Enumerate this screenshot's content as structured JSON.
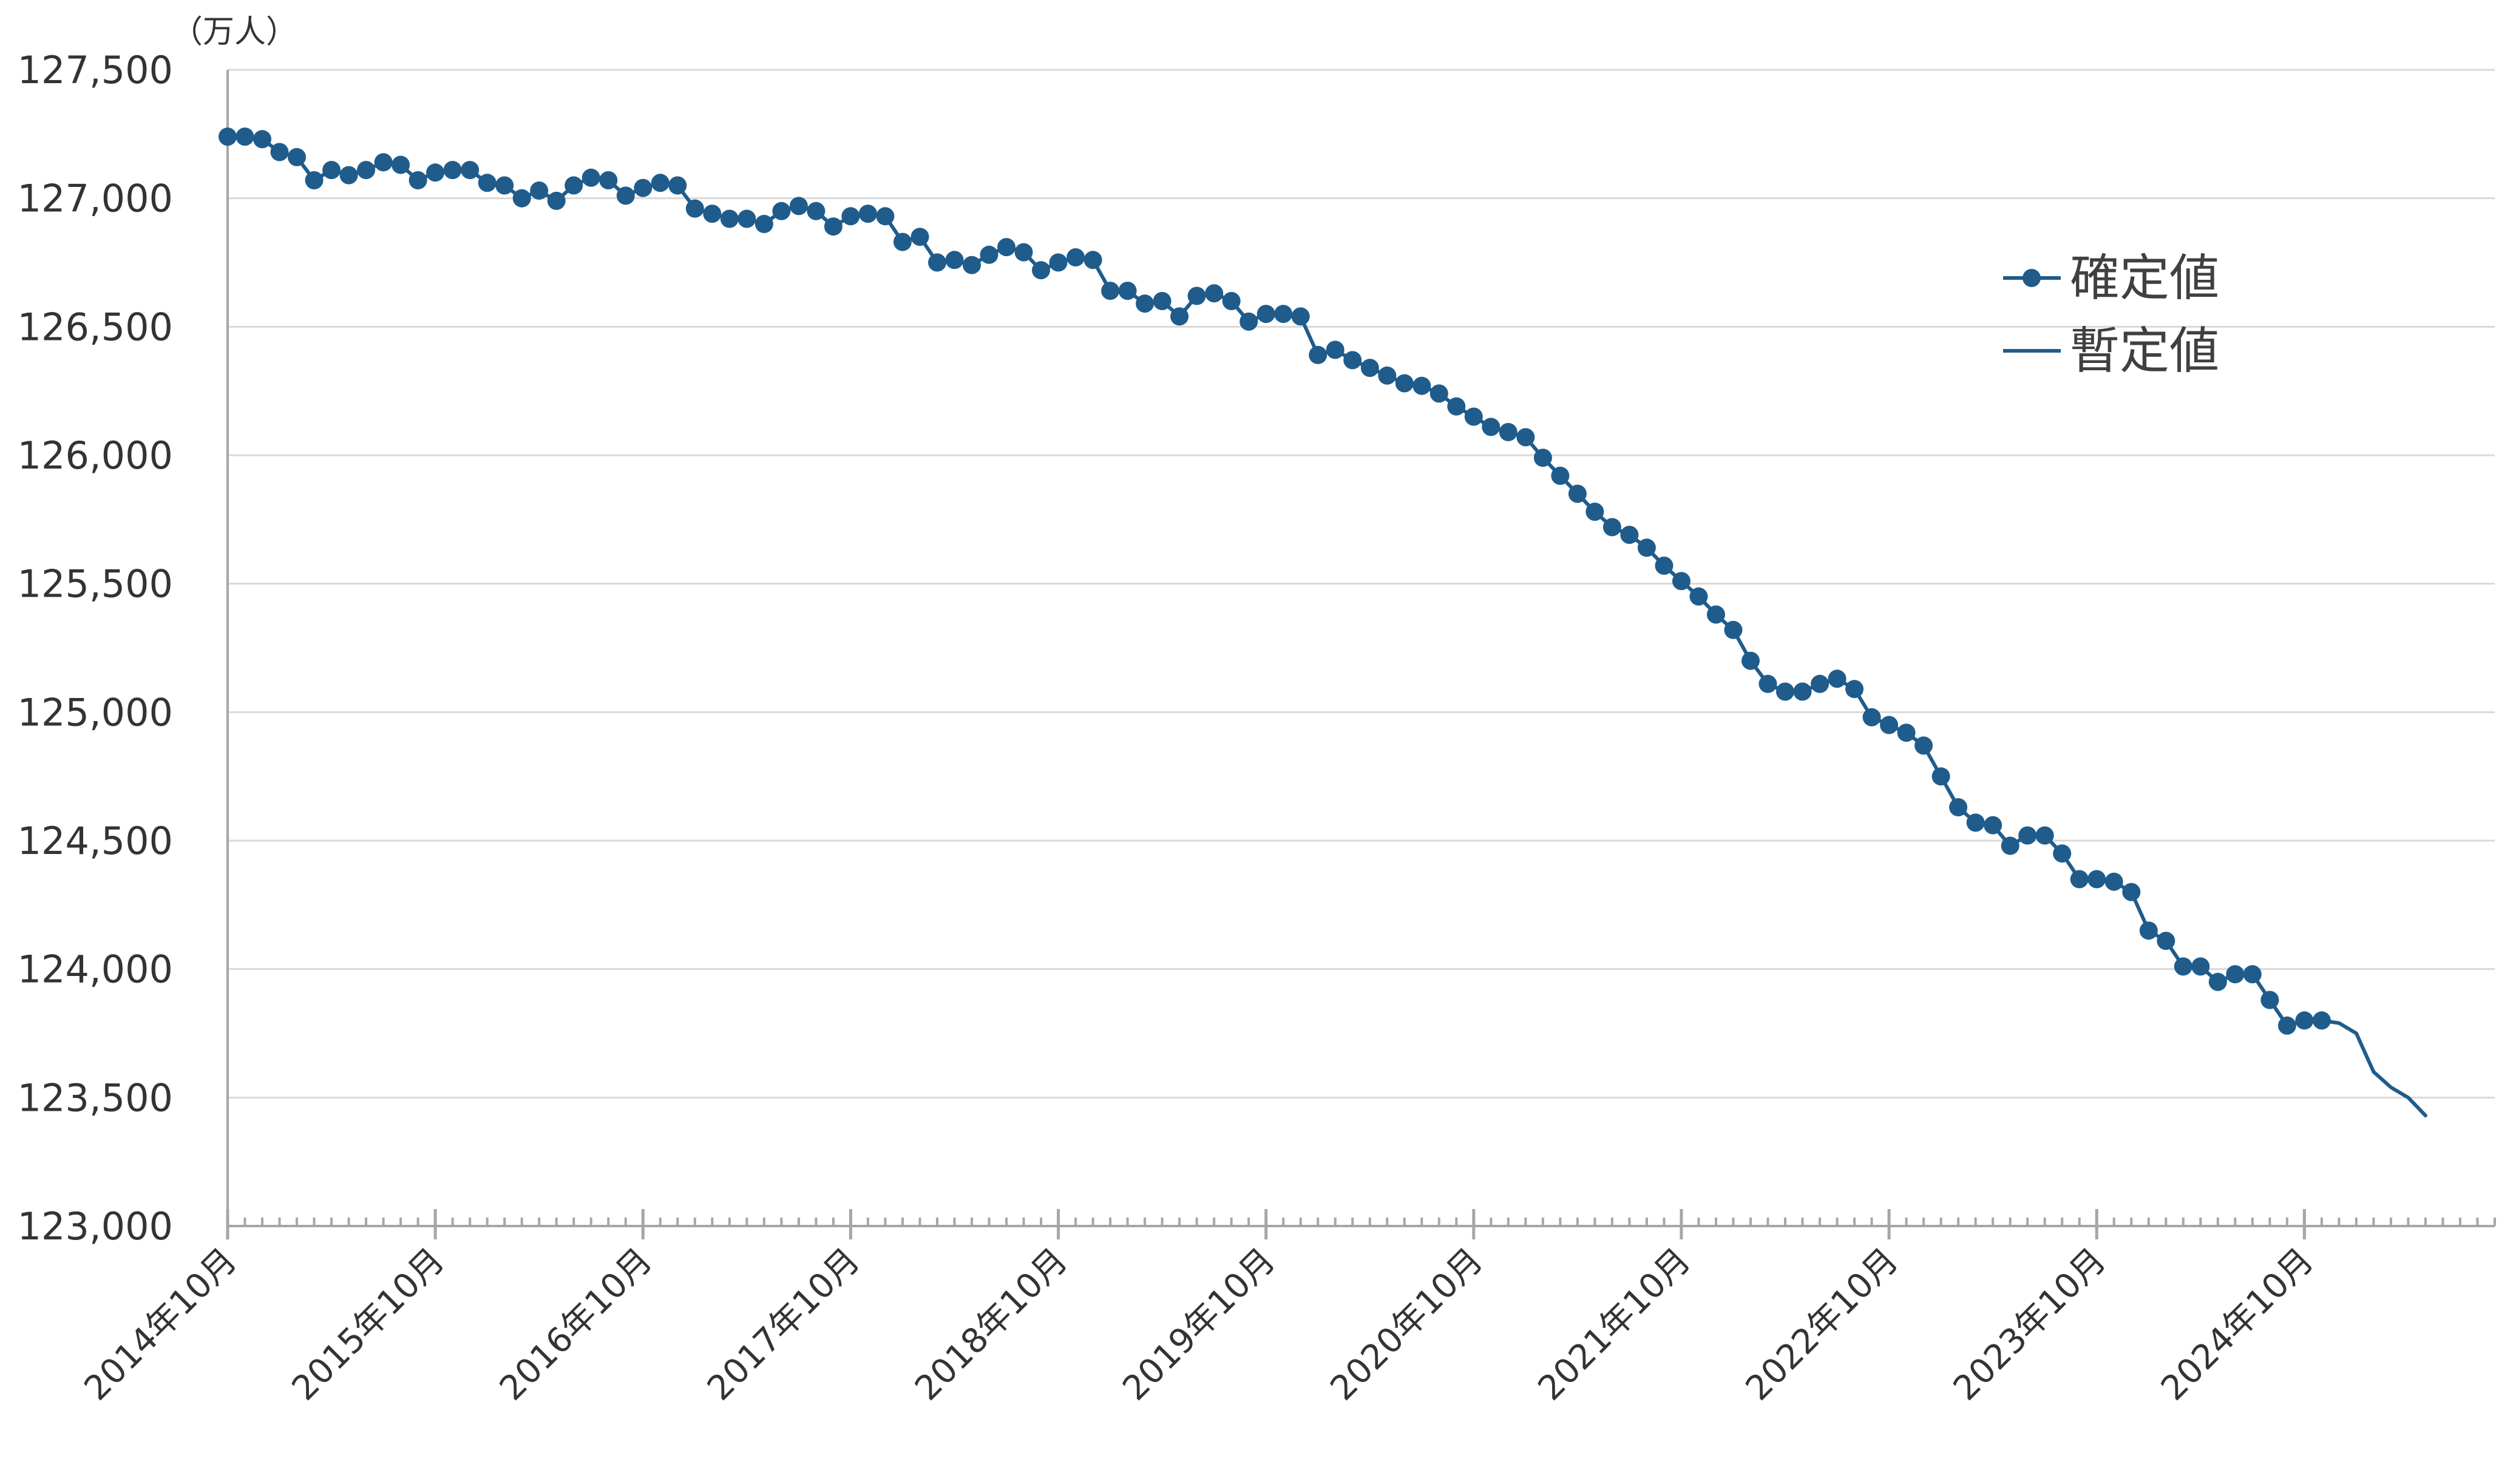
{
  "chart_data": {
    "type": "line",
    "y_unit": "（万人）",
    "ylim": [
      123000,
      127500
    ],
    "y_ticks": [
      {
        "value": 123000,
        "label": "123,000"
      },
      {
        "value": 123500,
        "label": "123,500"
      },
      {
        "value": 124000,
        "label": "124,000"
      },
      {
        "value": 124500,
        "label": "124,500"
      },
      {
        "value": 125000,
        "label": "125,000"
      },
      {
        "value": 125500,
        "label": "125,500"
      },
      {
        "value": 126000,
        "label": "126,000"
      },
      {
        "value": 126500,
        "label": "126,500"
      },
      {
        "value": 127000,
        "label": "127,000"
      },
      {
        "value": 127500,
        "label": "127,500"
      }
    ],
    "x_ticks": [
      {
        "value": "2014-10",
        "label": "2014年10月"
      },
      {
        "value": "2015-10",
        "label": "2015年10月"
      },
      {
        "value": "2016-10",
        "label": "2016年10月"
      },
      {
        "value": "2017-10",
        "label": "2017年10月"
      },
      {
        "value": "2018-10",
        "label": "2018年10月"
      },
      {
        "value": "2019-10",
        "label": "2019年10月"
      },
      {
        "value": "2020-10",
        "label": "2020年10月"
      },
      {
        "value": "2021-10",
        "label": "2021年10月"
      },
      {
        "value": "2022-10",
        "label": "2022年10月"
      },
      {
        "value": "2023-10",
        "label": "2023年10月"
      },
      {
        "value": "2024-10",
        "label": "2024年10月"
      }
    ],
    "xlim": [
      "2014-10",
      "2025-09"
    ],
    "grid": true,
    "legend_position": "upper-right",
    "series": [
      {
        "name": "確定値",
        "style": "line-with-markers",
        "color": "#1f5c8b",
        "x": [
          "2014-10",
          "2014-11",
          "2014-12",
          "2015-01",
          "2015-02",
          "2015-03",
          "2015-04",
          "2015-05",
          "2015-06",
          "2015-07",
          "2015-08",
          "2015-09",
          "2015-10",
          "2015-11",
          "2015-12",
          "2016-01",
          "2016-02",
          "2016-03",
          "2016-04",
          "2016-05",
          "2016-06",
          "2016-07",
          "2016-08",
          "2016-09",
          "2016-10",
          "2016-11",
          "2016-12",
          "2017-01",
          "2017-02",
          "2017-03",
          "2017-04",
          "2017-05",
          "2017-06",
          "2017-07",
          "2017-08",
          "2017-09",
          "2017-10",
          "2017-11",
          "2017-12",
          "2018-01",
          "2018-02",
          "2018-03",
          "2018-04",
          "2018-05",
          "2018-06",
          "2018-07",
          "2018-08",
          "2018-09",
          "2018-10",
          "2018-11",
          "2018-12",
          "2019-01",
          "2019-02",
          "2019-03",
          "2019-04",
          "2019-05",
          "2019-06",
          "2019-07",
          "2019-08",
          "2019-09",
          "2019-10",
          "2019-11",
          "2019-12",
          "2020-01",
          "2020-02",
          "2020-03",
          "2020-04",
          "2020-05",
          "2020-06",
          "2020-07",
          "2020-08",
          "2020-09",
          "2020-10",
          "2020-11",
          "2020-12",
          "2021-01",
          "2021-02",
          "2021-03",
          "2021-04",
          "2021-05",
          "2021-06",
          "2021-07",
          "2021-08",
          "2021-09",
          "2021-10",
          "2021-11",
          "2021-12",
          "2022-01",
          "2022-02",
          "2022-03",
          "2022-04",
          "2022-05",
          "2022-06",
          "2022-07",
          "2022-08",
          "2022-09",
          "2022-10",
          "2022-11",
          "2022-12",
          "2023-01",
          "2023-02",
          "2023-03",
          "2023-04",
          "2023-05",
          "2023-06",
          "2023-07",
          "2023-08",
          "2023-09",
          "2023-10",
          "2023-11",
          "2023-12",
          "2024-01",
          "2024-02",
          "2024-03",
          "2024-04",
          "2024-05",
          "2024-06",
          "2024-07",
          "2024-08",
          "2024-09",
          "2024-10",
          "2024-11"
        ],
        "y": [
          127240,
          127240,
          127230,
          127180,
          127160,
          127070,
          127110,
          127090,
          127110,
          127140,
          127130,
          127070,
          127100,
          127110,
          127110,
          127060,
          127050,
          127000,
          127030,
          126990,
          127050,
          127080,
          127070,
          127010,
          127040,
          127060,
          127050,
          126960,
          126940,
          126920,
          126920,
          126900,
          126950,
          126970,
          126950,
          126890,
          126930,
          126940,
          126930,
          126830,
          126850,
          126750,
          126760,
          126740,
          126780,
          126810,
          126790,
          126720,
          126750,
          126770,
          126760,
          126640,
          126640,
          126590,
          126600,
          126540,
          126620,
          126630,
          126600,
          126520,
          126550,
          126550,
          126540,
          126390,
          126410,
          126370,
          126340,
          126310,
          126280,
          126270,
          126240,
          126190,
          126150,
          126110,
          126090,
          126070,
          125990,
          125920,
          125850,
          125780,
          125720,
          125690,
          125640,
          125570,
          125510,
          125450,
          125380,
          125320,
          125200,
          125110,
          125080,
          125080,
          125110,
          125130,
          125090,
          124980,
          124950,
          124920,
          124870,
          124750,
          124630,
          124570,
          124560,
          124480,
          124520,
          124520,
          124450,
          124350,
          124350,
          124340,
          124300,
          124150,
          124110,
          124010,
          124010,
          123950,
          123980,
          123980,
          123880,
          123780,
          123800,
          123800
        ]
      },
      {
        "name": "暫定値",
        "style": "line",
        "color": "#1f5c8b",
        "x": [
          "2024-11",
          "2024-12",
          "2025-01",
          "2025-02",
          "2025-03",
          "2025-04",
          "2025-05"
        ],
        "y": [
          123800,
          123790,
          123750,
          123600,
          123540,
          123500,
          123430
        ]
      }
    ]
  }
}
